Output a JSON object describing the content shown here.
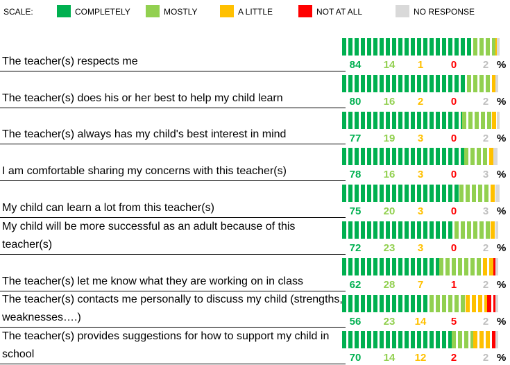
{
  "chart_data": {
    "type": "stacked_bar",
    "scale_label": "SCALE:",
    "unit": "%",
    "categories": [
      "The teacher(s) respects me",
      "The teacher(s) does his or her best to help my child learn",
      "The teacher(s) always has my child's best interest in mind",
      "I am comfortable sharing my concerns with this teacher(s)",
      "My child can learn a lot from this teacher(s)",
      "My child will be more successful as an adult because of this teacher(s)",
      "The teacher(s) let me know what they are working on in class",
      "The teacher(s) contacts me personally to discuss my child (strengths, weaknesses….)",
      "The teacher(s) provides suggestions for how to support my child in school"
    ],
    "series": [
      {
        "name": "COMPLETELY",
        "color": "#00b050",
        "values": [
          84,
          80,
          77,
          78,
          75,
          72,
          62,
          56,
          70
        ]
      },
      {
        "name": "MOSTLY",
        "color": "#92d050",
        "values": [
          14,
          16,
          19,
          16,
          20,
          23,
          28,
          23,
          14
        ]
      },
      {
        "name": "A LITTLE",
        "color": "#ffc000",
        "values": [
          1,
          2,
          3,
          3,
          3,
          3,
          7,
          14,
          12
        ]
      },
      {
        "name": "NOT AT ALL",
        "color": "#ff0000",
        "values": [
          0,
          0,
          0,
          0,
          0,
          0,
          1,
          5,
          2
        ]
      },
      {
        "name": "NO RESPONSE",
        "color": "#d9d9d9",
        "values": [
          2,
          2,
          2,
          3,
          3,
          2,
          2,
          2,
          2
        ]
      }
    ]
  }
}
